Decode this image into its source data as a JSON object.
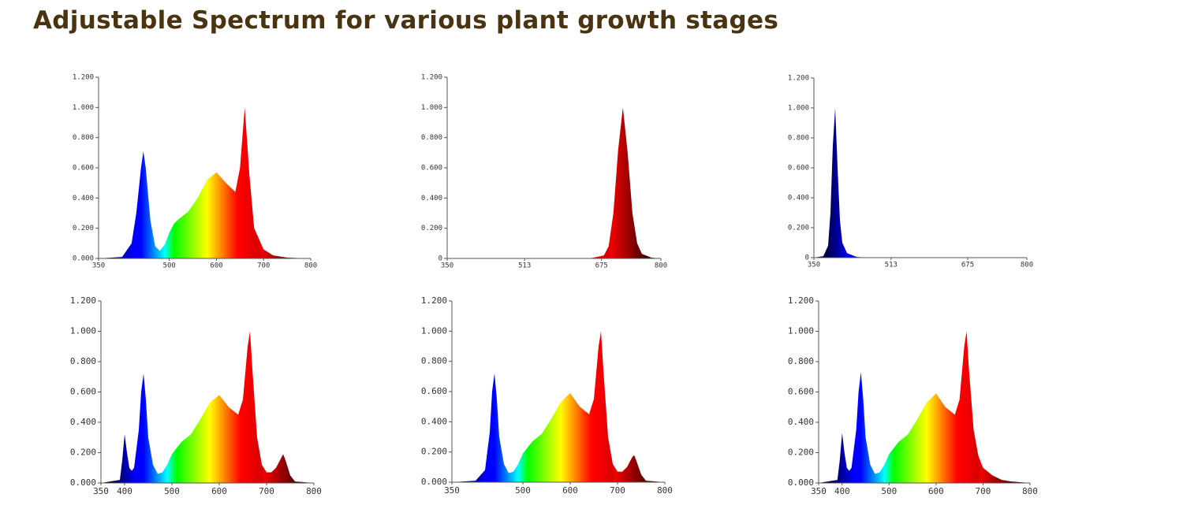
{
  "title": "Adjustable Spectrum for various plant growth stages",
  "chart_data": [
    {
      "type": "area",
      "x": [
        350,
        400,
        420,
        430,
        440,
        445,
        450,
        460,
        470,
        480,
        490,
        500,
        510,
        520,
        540,
        560,
        580,
        600,
        620,
        640,
        650,
        660,
        670,
        680,
        700,
        720,
        750,
        800
      ],
      "values": [
        0,
        0.01,
        0.1,
        0.3,
        0.6,
        0.71,
        0.6,
        0.25,
        0.08,
        0.05,
        0.09,
        0.17,
        0.23,
        0.26,
        0.31,
        0.4,
        0.52,
        0.57,
        0.5,
        0.44,
        0.6,
        1.0,
        0.55,
        0.2,
        0.06,
        0.02,
        0.005,
        0
      ],
      "xlim": [
        350,
        800
      ],
      "ylim": [
        0,
        1.2
      ],
      "xticks": [
        350,
        500,
        600,
        700,
        800
      ],
      "yticks": [
        {
          "value": 0,
          "label": "0.000"
        },
        {
          "value": 0.2,
          "label": "0.200"
        },
        {
          "value": 0.4,
          "label": "0.400"
        },
        {
          "value": 0.6,
          "label": "0.600"
        },
        {
          "value": 0.8,
          "label": "0.800"
        },
        {
          "value": 1,
          "label": "1.000"
        },
        {
          "value": 1.2,
          "label": "1.200"
        }
      ]
    },
    {
      "type": "area",
      "x": [
        350,
        650,
        680,
        690,
        700,
        710,
        720,
        730,
        740,
        750,
        760,
        780,
        800
      ],
      "values": [
        0,
        0,
        0.02,
        0.08,
        0.3,
        0.72,
        1.0,
        0.7,
        0.3,
        0.1,
        0.03,
        0.005,
        0
      ],
      "xlim": [
        350,
        800
      ],
      "ylim": [
        0,
        1.2
      ],
      "xticks": [
        350,
        513,
        675,
        800
      ],
      "yticks": [
        0,
        {
          "value": 0.2,
          "label": "0.200"
        },
        {
          "value": 0.4,
          "label": "0.400"
        },
        {
          "value": 0.6,
          "label": "0.600"
        },
        {
          "value": 0.8,
          "label": "0.800"
        },
        {
          "value": 1,
          "label": "1.000"
        },
        {
          "value": 1.2,
          "label": "1.200"
        }
      ]
    },
    {
      "type": "area",
      "x": [
        350,
        370,
        380,
        385,
        390,
        395,
        400,
        405,
        410,
        420,
        440,
        460,
        800
      ],
      "values": [
        0,
        0.01,
        0.08,
        0.3,
        0.75,
        1.0,
        0.6,
        0.25,
        0.1,
        0.03,
        0.005,
        0,
        0
      ],
      "xlim": [
        350,
        800
      ],
      "ylim": [
        0,
        1.2
      ],
      "xticks": [
        350,
        513,
        675,
        800
      ],
      "yticks": [
        0,
        {
          "value": 0.2,
          "label": "0.200"
        },
        {
          "value": 0.4,
          "label": "0.400"
        },
        {
          "value": 0.6,
          "label": "0.600"
        },
        {
          "value": 0.8,
          "label": "0.800"
        },
        {
          "value": 1,
          "label": "1.000"
        },
        {
          "value": 1.2,
          "label": "1.200"
        }
      ]
    },
    {
      "type": "area",
      "x": [
        350,
        390,
        395,
        400,
        405,
        410,
        415,
        420,
        430,
        435,
        440,
        445,
        450,
        460,
        470,
        480,
        490,
        500,
        520,
        540,
        560,
        580,
        600,
        620,
        640,
        650,
        660,
        665,
        670,
        680,
        690,
        700,
        710,
        720,
        730,
        735,
        740,
        750,
        760,
        800
      ],
      "values": [
        0,
        0.02,
        0.15,
        0.32,
        0.2,
        0.1,
        0.08,
        0.1,
        0.35,
        0.6,
        0.72,
        0.55,
        0.3,
        0.12,
        0.06,
        0.07,
        0.12,
        0.19,
        0.27,
        0.32,
        0.42,
        0.53,
        0.58,
        0.5,
        0.45,
        0.55,
        0.9,
        1.0,
        0.75,
        0.3,
        0.12,
        0.07,
        0.07,
        0.1,
        0.16,
        0.19,
        0.15,
        0.05,
        0.01,
        0
      ],
      "xlim": [
        350,
        800
      ],
      "ylim": [
        0,
        1.2
      ],
      "xticks": [
        350,
        400,
        500,
        600,
        700,
        800
      ],
      "yticks": [
        {
          "value": 0,
          "label": "0.000"
        },
        {
          "value": 0.2,
          "label": "0.200"
        },
        {
          "value": 0.4,
          "label": "0.400"
        },
        {
          "value": 0.6,
          "label": "0.600"
        },
        {
          "value": 0.8,
          "label": "0.800"
        },
        {
          "value": 1,
          "label": "1.000"
        },
        {
          "value": 1.2,
          "label": "1.200"
        }
      ]
    },
    {
      "type": "area",
      "x": [
        350,
        400,
        420,
        430,
        435,
        440,
        445,
        450,
        460,
        470,
        480,
        490,
        500,
        520,
        540,
        560,
        580,
        600,
        620,
        640,
        650,
        660,
        665,
        670,
        680,
        690,
        700,
        710,
        720,
        730,
        735,
        740,
        750,
        760,
        800
      ],
      "values": [
        0,
        0.01,
        0.08,
        0.33,
        0.6,
        0.72,
        0.55,
        0.3,
        0.12,
        0.06,
        0.07,
        0.12,
        0.19,
        0.27,
        0.32,
        0.42,
        0.53,
        0.59,
        0.5,
        0.45,
        0.55,
        0.9,
        1.0,
        0.75,
        0.3,
        0.12,
        0.07,
        0.07,
        0.1,
        0.16,
        0.18,
        0.14,
        0.05,
        0.01,
        0
      ],
      "xlim": [
        350,
        800
      ],
      "ylim": [
        0,
        1.2
      ],
      "xticks": [
        350,
        500,
        600,
        700,
        800
      ],
      "yticks": [
        {
          "value": 0,
          "label": "0.000"
        },
        {
          "value": 0.2,
          "label": "0.200"
        },
        {
          "value": 0.4,
          "label": "0.400"
        },
        {
          "value": 0.6,
          "label": "0.600"
        },
        {
          "value": 0.8,
          "label": "0.800"
        },
        {
          "value": 1,
          "label": "1.000"
        },
        {
          "value": 1.2,
          "label": "1.200"
        }
      ]
    },
    {
      "type": "area",
      "x": [
        350,
        390,
        395,
        400,
        405,
        410,
        415,
        420,
        430,
        435,
        440,
        445,
        450,
        460,
        470,
        480,
        490,
        500,
        520,
        540,
        560,
        580,
        600,
        620,
        640,
        650,
        660,
        665,
        670,
        680,
        690,
        700,
        720,
        740,
        760,
        800
      ],
      "values": [
        0,
        0.02,
        0.15,
        0.33,
        0.2,
        0.1,
        0.08,
        0.1,
        0.35,
        0.6,
        0.73,
        0.55,
        0.3,
        0.12,
        0.06,
        0.07,
        0.12,
        0.19,
        0.27,
        0.32,
        0.42,
        0.53,
        0.59,
        0.5,
        0.45,
        0.55,
        0.9,
        1.0,
        0.75,
        0.35,
        0.18,
        0.1,
        0.05,
        0.02,
        0.01,
        0
      ],
      "xlim": [
        350,
        800
      ],
      "ylim": [
        0,
        1.2
      ],
      "xticks": [
        350,
        400,
        500,
        600,
        700,
        800
      ],
      "yticks": [
        {
          "value": 0,
          "label": "0.000"
        },
        {
          "value": 0.2,
          "label": "0.200"
        },
        {
          "value": 0.4,
          "label": "0.400"
        },
        {
          "value": 0.6,
          "label": "0.600"
        },
        {
          "value": 0.8,
          "label": "0.800"
        },
        {
          "value": 1,
          "label": "1.000"
        },
        {
          "value": 1.2,
          "label": "1.200"
        }
      ]
    }
  ]
}
